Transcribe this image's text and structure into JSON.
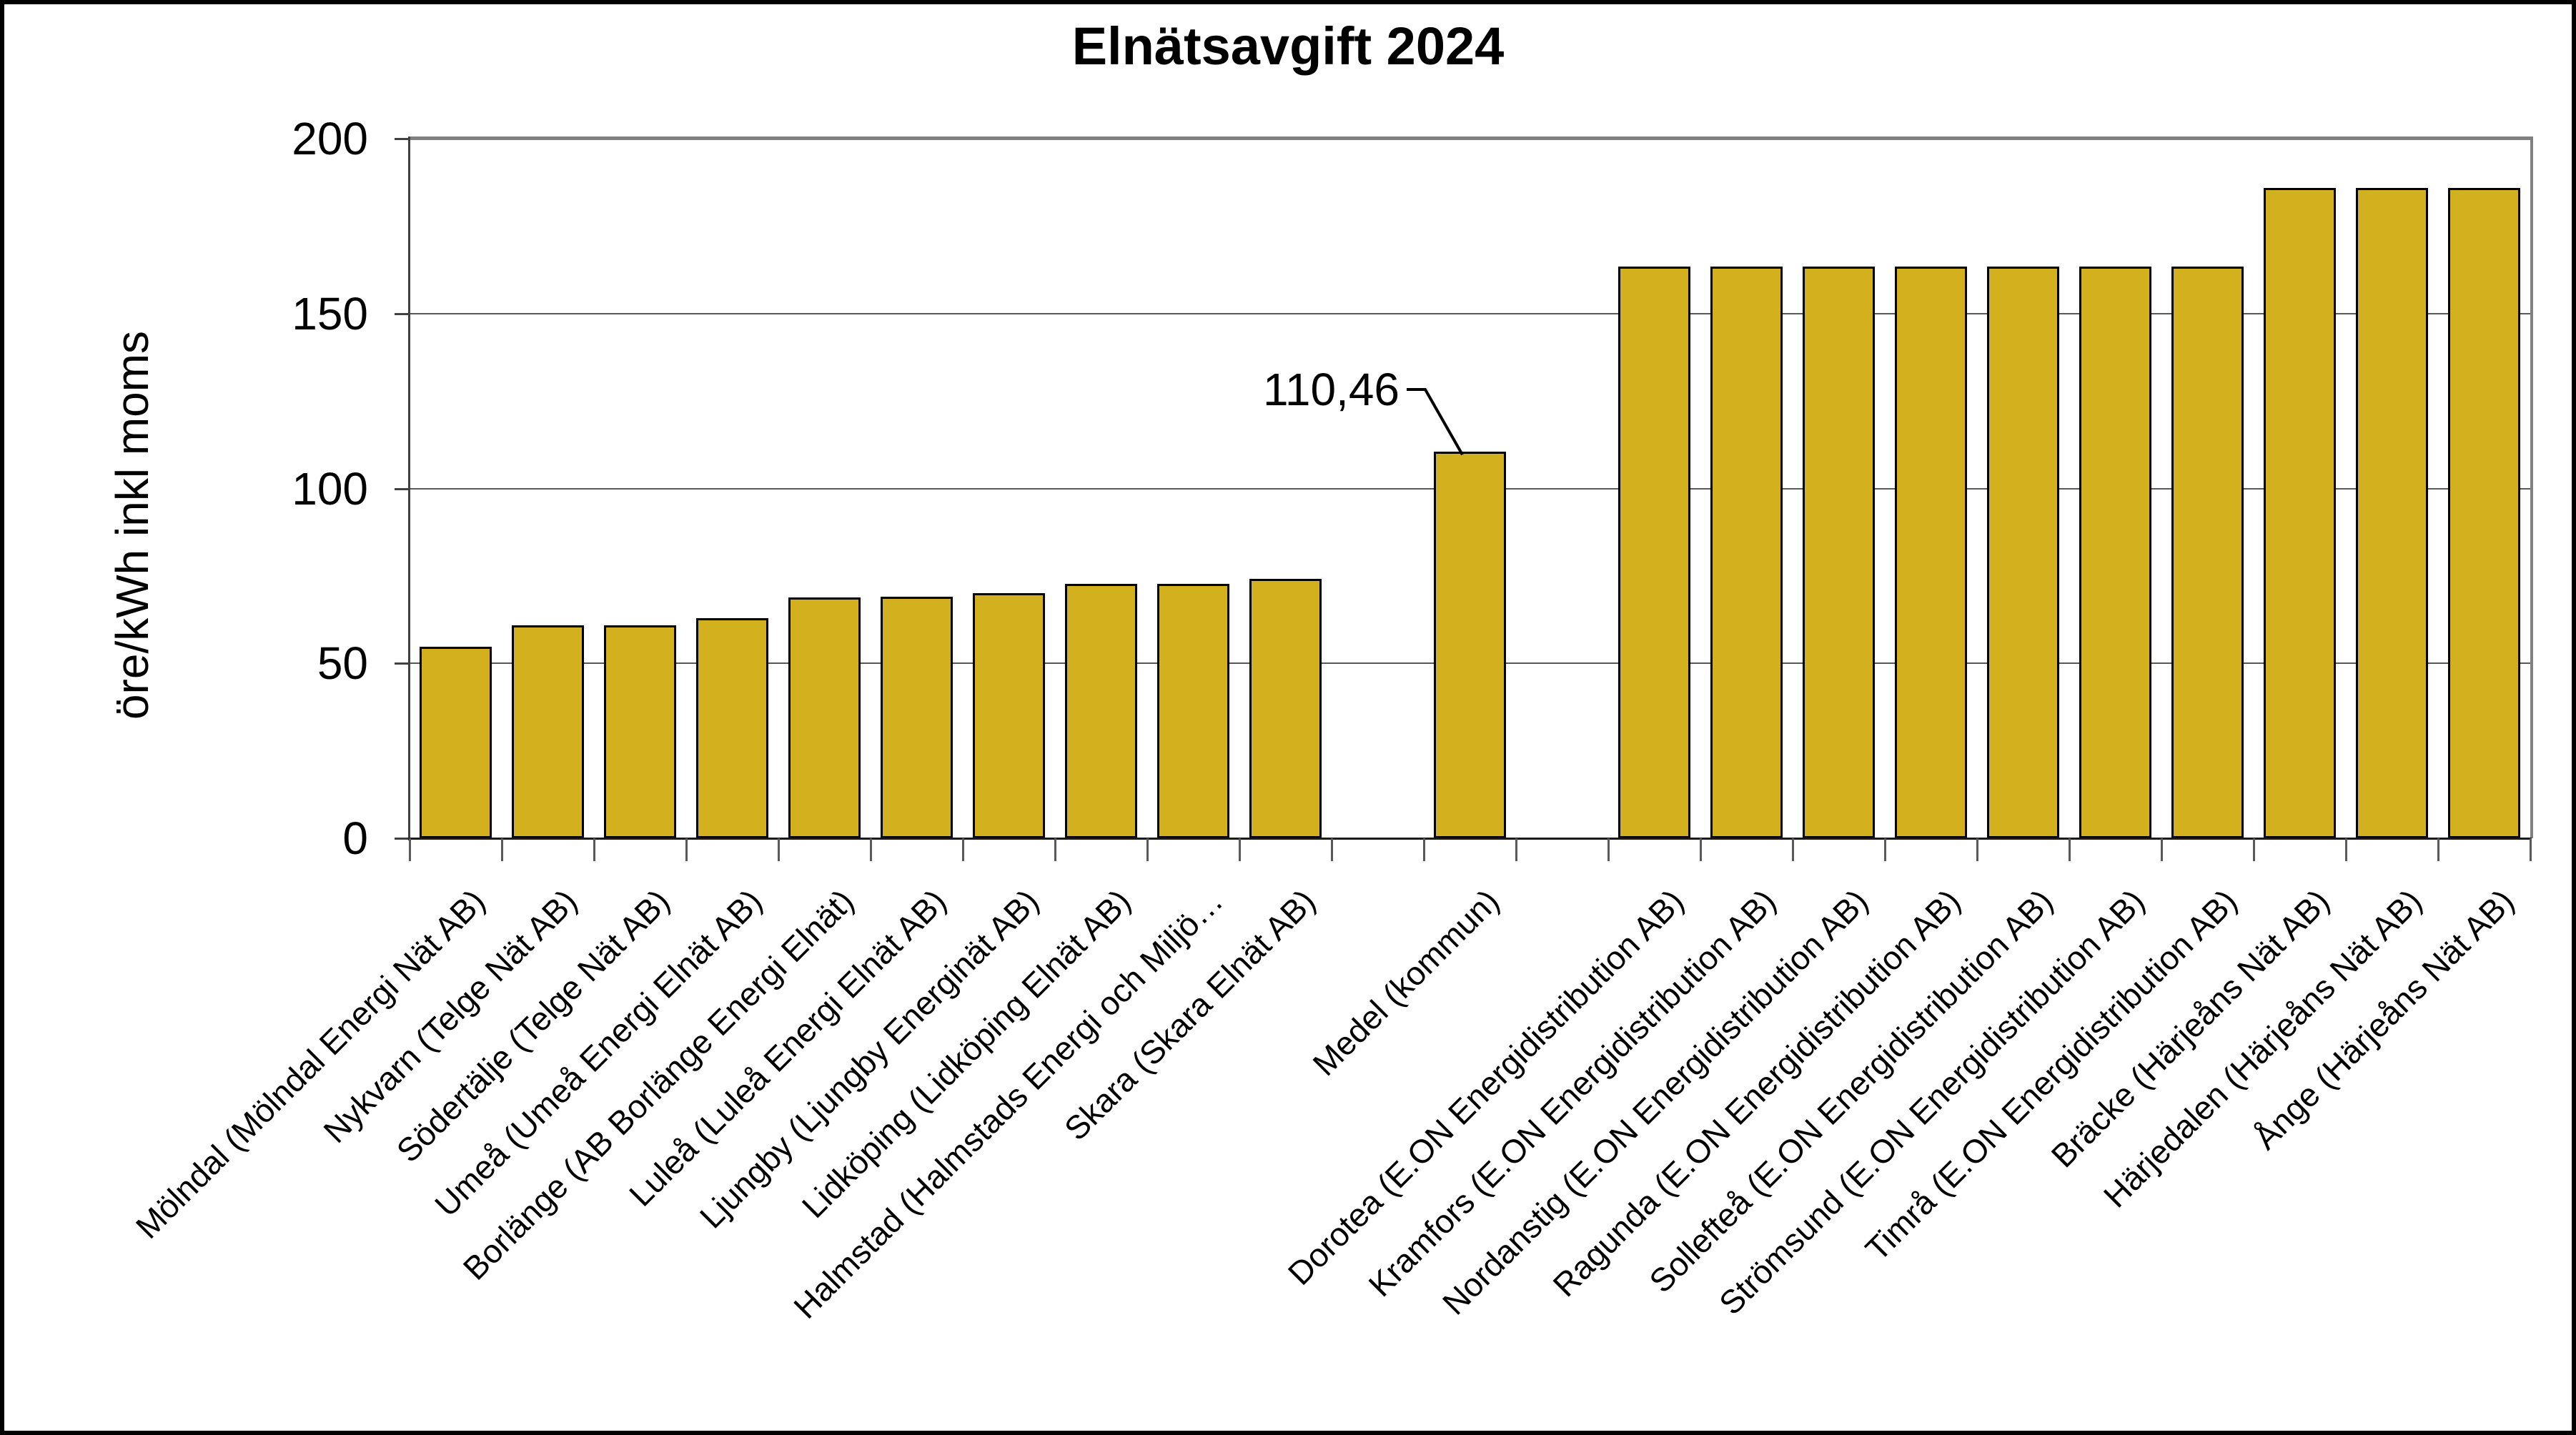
{
  "window": {
    "background": "#ffffff",
    "frame_color": "#000000"
  },
  "chart_data": {
    "type": "bar",
    "title": "Elnätsavgift 2024",
    "xlabel": "",
    "ylabel": "öre/kWh inkl moms",
    "ylim": [
      0,
      200
    ],
    "yticks": [
      0,
      50,
      100,
      150,
      200
    ],
    "grid": "horizontal-major",
    "legend": "none",
    "bar_color": "#D2B01E",
    "bar_border_color": "#000000",
    "gridline_color": "#595959",
    "plot_border_color": "#808080",
    "categories": [
      "Mölndal (Mölndal Energi Nät AB)",
      "Nykvarn (Telge Nät AB)",
      "Södertälje (Telge Nät AB)",
      "Umeå (Umeå Energi Elnät AB)",
      "Borlänge (AB Borlänge Energi Elnät)",
      "Luleå (Luleå Energi Elnät AB)",
      "Ljungby (Ljungby Energinät AB)",
      "Lidköping (Lidköping Elnät AB)",
      "Halmstad (Halmstads Energi och Miljö…",
      "Skara (Skara Elnät AB)",
      "",
      "Medel (kommun)",
      "",
      "Dorotea (E.ON Energidistribution AB)",
      "Kramfors (E.ON Energidistribution AB)",
      "Nordanstig (E.ON Energidistribution AB)",
      "Ragunda (E.ON Energidistribution AB)",
      "Sollefteå (E.ON Energidistribution AB)",
      "Strömsund (E.ON Energidistribution AB)",
      "Timrå (E.ON Energidistribution AB)",
      "Bräcke (Härjeåns Nät AB)",
      "Härjedalen (Härjeåns Nät AB)",
      "Ånge (Härjeåns Nät AB)"
    ],
    "values": [
      54.8,
      60.8,
      60.8,
      62.9,
      68.9,
      69.0,
      70.1,
      72.8,
      72.8,
      74.2,
      null,
      110.46,
      null,
      163.4,
      163.4,
      163.4,
      163.4,
      163.4,
      163.4,
      163.4,
      186.0,
      186.0,
      186.0
    ],
    "annotation": {
      "text": "110,46",
      "category": "Medel (kommun)",
      "value": 110.46
    }
  }
}
